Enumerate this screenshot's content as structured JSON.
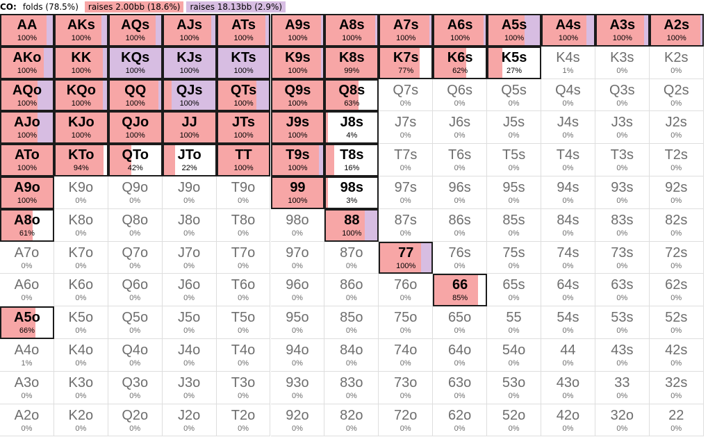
{
  "legend": {
    "position": "CO:",
    "items": [
      {
        "label": "folds (78.5%)",
        "color": "#ffffff"
      },
      {
        "label": "raises 2.00bb (18.6%)",
        "color": "#f7a6a6"
      },
      {
        "label": "raises 18.13bb (2.9%)",
        "color": "#d7bde2"
      }
    ]
  },
  "colors": {
    "raise_small": "#f7a6a6",
    "raise_large": "#d7bde2",
    "fold": "#ffffff"
  },
  "grid": [
    [
      {
        "h": "AA",
        "t": "100%",
        "r": 0.88,
        "a": 0.12
      },
      {
        "h": "AKs",
        "t": "100%",
        "r": 0.9,
        "a": 0.1
      },
      {
        "h": "AQs",
        "t": "100%",
        "r": 0.9,
        "a": 0.1
      },
      {
        "h": "AJs",
        "t": "100%",
        "r": 0.92,
        "a": 0.08
      },
      {
        "h": "ATs",
        "t": "100%",
        "r": 0.92,
        "a": 0.08
      },
      {
        "h": "A9s",
        "t": "100%",
        "r": 0.95,
        "a": 0.05
      },
      {
        "h": "A8s",
        "t": "100%",
        "r": 0.95,
        "a": 0.05
      },
      {
        "h": "A7s",
        "t": "100%",
        "r": 0.96,
        "a": 0.04
      },
      {
        "h": "A6s",
        "t": "100%",
        "r": 0.96,
        "a": 0.04
      },
      {
        "h": "A5s",
        "t": "100%",
        "r": 0.7,
        "a": 0.3
      },
      {
        "h": "A4s",
        "t": "100%",
        "r": 0.85,
        "a": 0.15
      },
      {
        "h": "A3s",
        "t": "100%",
        "r": 0.92,
        "a": 0.08
      },
      {
        "h": "A2s",
        "t": "100%",
        "r": 0.96,
        "a": 0.04
      }
    ],
    [
      {
        "h": "AKo",
        "t": "100%",
        "r": 0.83,
        "a": 0.17
      },
      {
        "h": "KK",
        "t": "100%",
        "r": 0.92,
        "a": 0.08
      },
      {
        "h": "KQs",
        "t": "100%",
        "r": 0,
        "a": 1
      },
      {
        "h": "KJs",
        "t": "100%",
        "r": 0,
        "a": 1
      },
      {
        "h": "KTs",
        "t": "100%",
        "r": 0,
        "a": 1
      },
      {
        "h": "K9s",
        "t": "100%",
        "r": 0.96,
        "a": 0.04
      },
      {
        "h": "K8s",
        "t": "99%",
        "r": 0.99,
        "a": 0
      },
      {
        "h": "K7s",
        "t": "77%",
        "r": 0.77,
        "a": 0
      },
      {
        "h": "K6s",
        "t": "62%",
        "r": 0.62,
        "a": 0
      },
      {
        "h": "K5s",
        "t": "27%",
        "r": 0.27,
        "a": 0
      },
      {
        "h": "K4s",
        "t": "1%",
        "r": 0,
        "a": 0
      },
      {
        "h": "K3s",
        "t": "0%",
        "r": 0,
        "a": 0
      },
      {
        "h": "K2s",
        "t": "0%",
        "r": 0,
        "a": 0
      }
    ],
    [
      {
        "h": "AQo",
        "t": "100%",
        "r": 0.7,
        "a": 0.3
      },
      {
        "h": "KQo",
        "t": "100%",
        "r": 0.92,
        "a": 0.08
      },
      {
        "h": "QQ",
        "t": "100%",
        "r": 0.95,
        "a": 0.05
      },
      {
        "h": "QJs",
        "t": "100%",
        "r": 0.15,
        "a": 0.85
      },
      {
        "h": "QTs",
        "t": "100%",
        "r": 0.75,
        "a": 0.25
      },
      {
        "h": "Q9s",
        "t": "100%",
        "r": 1,
        "a": 0
      },
      {
        "h": "Q8s",
        "t": "63%",
        "r": 0.63,
        "a": 0
      },
      {
        "h": "Q7s",
        "t": "0%",
        "r": 0,
        "a": 0
      },
      {
        "h": "Q6s",
        "t": "0%",
        "r": 0,
        "a": 0
      },
      {
        "h": "Q5s",
        "t": "0%",
        "r": 0,
        "a": 0
      },
      {
        "h": "Q4s",
        "t": "0%",
        "r": 0,
        "a": 0
      },
      {
        "h": "Q3s",
        "t": "0%",
        "r": 0,
        "a": 0
      },
      {
        "h": "Q2s",
        "t": "0%",
        "r": 0,
        "a": 0
      }
    ],
    [
      {
        "h": "AJo",
        "t": "100%",
        "r": 0.7,
        "a": 0.3
      },
      {
        "h": "KJo",
        "t": "100%",
        "r": 1,
        "a": 0
      },
      {
        "h": "QJo",
        "t": "100%",
        "r": 1,
        "a": 0
      },
      {
        "h": "JJ",
        "t": "100%",
        "r": 1,
        "a": 0
      },
      {
        "h": "JTs",
        "t": "100%",
        "r": 1,
        "a": 0
      },
      {
        "h": "J9s",
        "t": "100%",
        "r": 1,
        "a": 0
      },
      {
        "h": "J8s",
        "t": "4%",
        "r": 0.04,
        "a": 0
      },
      {
        "h": "J7s",
        "t": "0%",
        "r": 0,
        "a": 0
      },
      {
        "h": "J6s",
        "t": "0%",
        "r": 0,
        "a": 0
      },
      {
        "h": "J5s",
        "t": "0%",
        "r": 0,
        "a": 0
      },
      {
        "h": "J4s",
        "t": "0%",
        "r": 0,
        "a": 0
      },
      {
        "h": "J3s",
        "t": "0%",
        "r": 0,
        "a": 0
      },
      {
        "h": "J2s",
        "t": "0%",
        "r": 0,
        "a": 0
      }
    ],
    [
      {
        "h": "ATo",
        "t": "100%",
        "r": 1,
        "a": 0
      },
      {
        "h": "KTo",
        "t": "94%",
        "r": 0.94,
        "a": 0
      },
      {
        "h": "QTo",
        "t": "42%",
        "r": 0.42,
        "a": 0
      },
      {
        "h": "JTo",
        "t": "22%",
        "r": 0.22,
        "a": 0
      },
      {
        "h": "TT",
        "t": "100%",
        "r": 1,
        "a": 0
      },
      {
        "h": "T9s",
        "t": "100%",
        "r": 0.92,
        "a": 0.08
      },
      {
        "h": "T8s",
        "t": "16%",
        "r": 0.16,
        "a": 0
      },
      {
        "h": "T7s",
        "t": "0%",
        "r": 0,
        "a": 0
      },
      {
        "h": "T6s",
        "t": "0%",
        "r": 0,
        "a": 0
      },
      {
        "h": "T5s",
        "t": "0%",
        "r": 0,
        "a": 0
      },
      {
        "h": "T4s",
        "t": "0%",
        "r": 0,
        "a": 0
      },
      {
        "h": "T3s",
        "t": "0%",
        "r": 0,
        "a": 0
      },
      {
        "h": "T2s",
        "t": "0%",
        "r": 0,
        "a": 0
      }
    ],
    [
      {
        "h": "A9o",
        "t": "100%",
        "r": 1,
        "a": 0
      },
      {
        "h": "K9o",
        "t": "0%",
        "r": 0,
        "a": 0
      },
      {
        "h": "Q9o",
        "t": "0%",
        "r": 0,
        "a": 0
      },
      {
        "h": "J9o",
        "t": "0%",
        "r": 0,
        "a": 0
      },
      {
        "h": "T9o",
        "t": "0%",
        "r": 0,
        "a": 0
      },
      {
        "h": "99",
        "t": "100%",
        "r": 1,
        "a": 0
      },
      {
        "h": "98s",
        "t": "3%",
        "r": 0.03,
        "a": 0
      },
      {
        "h": "97s",
        "t": "0%",
        "r": 0,
        "a": 0
      },
      {
        "h": "96s",
        "t": "0%",
        "r": 0,
        "a": 0
      },
      {
        "h": "95s",
        "t": "0%",
        "r": 0,
        "a": 0
      },
      {
        "h": "94s",
        "t": "0%",
        "r": 0,
        "a": 0
      },
      {
        "h": "93s",
        "t": "0%",
        "r": 0,
        "a": 0
      },
      {
        "h": "92s",
        "t": "0%",
        "r": 0,
        "a": 0
      }
    ],
    [
      {
        "h": "A8o",
        "t": "61%",
        "r": 0.61,
        "a": 0
      },
      {
        "h": "K8o",
        "t": "0%",
        "r": 0,
        "a": 0
      },
      {
        "h": "Q8o",
        "t": "0%",
        "r": 0,
        "a": 0
      },
      {
        "h": "J8o",
        "t": "0%",
        "r": 0,
        "a": 0
      },
      {
        "h": "T8o",
        "t": "0%",
        "r": 0,
        "a": 0
      },
      {
        "h": "98o",
        "t": "0%",
        "r": 0,
        "a": 0
      },
      {
        "h": "88",
        "t": "100%",
        "r": 0.75,
        "a": 0.25
      },
      {
        "h": "87s",
        "t": "0%",
        "r": 0,
        "a": 0
      },
      {
        "h": "86s",
        "t": "0%",
        "r": 0,
        "a": 0
      },
      {
        "h": "85s",
        "t": "0%",
        "r": 0,
        "a": 0
      },
      {
        "h": "84s",
        "t": "0%",
        "r": 0,
        "a": 0
      },
      {
        "h": "83s",
        "t": "0%",
        "r": 0,
        "a": 0
      },
      {
        "h": "82s",
        "t": "0%",
        "r": 0,
        "a": 0
      }
    ],
    [
      {
        "h": "A7o",
        "t": "0%",
        "r": 0,
        "a": 0
      },
      {
        "h": "K7o",
        "t": "0%",
        "r": 0,
        "a": 0
      },
      {
        "h": "Q7o",
        "t": "0%",
        "r": 0,
        "a": 0
      },
      {
        "h": "J7o",
        "t": "0%",
        "r": 0,
        "a": 0
      },
      {
        "h": "T7o",
        "t": "0%",
        "r": 0,
        "a": 0
      },
      {
        "h": "97o",
        "t": "0%",
        "r": 0,
        "a": 0
      },
      {
        "h": "87o",
        "t": "0%",
        "r": 0,
        "a": 0
      },
      {
        "h": "77",
        "t": "100%",
        "r": 0.8,
        "a": 0.2
      },
      {
        "h": "76s",
        "t": "0%",
        "r": 0,
        "a": 0
      },
      {
        "h": "75s",
        "t": "0%",
        "r": 0,
        "a": 0
      },
      {
        "h": "74s",
        "t": "0%",
        "r": 0,
        "a": 0
      },
      {
        "h": "73s",
        "t": "0%",
        "r": 0,
        "a": 0
      },
      {
        "h": "72s",
        "t": "0%",
        "r": 0,
        "a": 0
      }
    ],
    [
      {
        "h": "A6o",
        "t": "0%",
        "r": 0,
        "a": 0
      },
      {
        "h": "K6o",
        "t": "0%",
        "r": 0,
        "a": 0
      },
      {
        "h": "Q6o",
        "t": "0%",
        "r": 0,
        "a": 0
      },
      {
        "h": "J6o",
        "t": "0%",
        "r": 0,
        "a": 0
      },
      {
        "h": "T6o",
        "t": "0%",
        "r": 0,
        "a": 0
      },
      {
        "h": "96o",
        "t": "0%",
        "r": 0,
        "a": 0
      },
      {
        "h": "86o",
        "t": "0%",
        "r": 0,
        "a": 0
      },
      {
        "h": "76o",
        "t": "0%",
        "r": 0,
        "a": 0
      },
      {
        "h": "66",
        "t": "85%",
        "r": 0.85,
        "a": 0
      },
      {
        "h": "65s",
        "t": "0%",
        "r": 0,
        "a": 0
      },
      {
        "h": "64s",
        "t": "0%",
        "r": 0,
        "a": 0
      },
      {
        "h": "63s",
        "t": "0%",
        "r": 0,
        "a": 0
      },
      {
        "h": "62s",
        "t": "0%",
        "r": 0,
        "a": 0
      }
    ],
    [
      {
        "h": "A5o",
        "t": "66%",
        "r": 0.66,
        "a": 0
      },
      {
        "h": "K5o",
        "t": "0%",
        "r": 0,
        "a": 0
      },
      {
        "h": "Q5o",
        "t": "0%",
        "r": 0,
        "a": 0
      },
      {
        "h": "J5o",
        "t": "0%",
        "r": 0,
        "a": 0
      },
      {
        "h": "T5o",
        "t": "0%",
        "r": 0,
        "a": 0
      },
      {
        "h": "95o",
        "t": "0%",
        "r": 0,
        "a": 0
      },
      {
        "h": "85o",
        "t": "0%",
        "r": 0,
        "a": 0
      },
      {
        "h": "75o",
        "t": "0%",
        "r": 0,
        "a": 0
      },
      {
        "h": "65o",
        "t": "0%",
        "r": 0,
        "a": 0
      },
      {
        "h": "55",
        "t": "0%",
        "r": 0,
        "a": 0
      },
      {
        "h": "54s",
        "t": "0%",
        "r": 0,
        "a": 0
      },
      {
        "h": "53s",
        "t": "0%",
        "r": 0,
        "a": 0
      },
      {
        "h": "52s",
        "t": "0%",
        "r": 0,
        "a": 0
      }
    ],
    [
      {
        "h": "A4o",
        "t": "1%",
        "r": 0,
        "a": 0
      },
      {
        "h": "K4o",
        "t": "0%",
        "r": 0,
        "a": 0
      },
      {
        "h": "Q4o",
        "t": "0%",
        "r": 0,
        "a": 0
      },
      {
        "h": "J4o",
        "t": "0%",
        "r": 0,
        "a": 0
      },
      {
        "h": "T4o",
        "t": "0%",
        "r": 0,
        "a": 0
      },
      {
        "h": "94o",
        "t": "0%",
        "r": 0,
        "a": 0
      },
      {
        "h": "84o",
        "t": "0%",
        "r": 0,
        "a": 0
      },
      {
        "h": "74o",
        "t": "0%",
        "r": 0,
        "a": 0
      },
      {
        "h": "64o",
        "t": "0%",
        "r": 0,
        "a": 0
      },
      {
        "h": "54o",
        "t": "0%",
        "r": 0,
        "a": 0
      },
      {
        "h": "44",
        "t": "0%",
        "r": 0,
        "a": 0
      },
      {
        "h": "43s",
        "t": "0%",
        "r": 0,
        "a": 0
      },
      {
        "h": "42s",
        "t": "0%",
        "r": 0,
        "a": 0
      }
    ],
    [
      {
        "h": "A3o",
        "t": "0%",
        "r": 0,
        "a": 0
      },
      {
        "h": "K3o",
        "t": "0%",
        "r": 0,
        "a": 0
      },
      {
        "h": "Q3o",
        "t": "0%",
        "r": 0,
        "a": 0
      },
      {
        "h": "J3o",
        "t": "0%",
        "r": 0,
        "a": 0
      },
      {
        "h": "T3o",
        "t": "0%",
        "r": 0,
        "a": 0
      },
      {
        "h": "93o",
        "t": "0%",
        "r": 0,
        "a": 0
      },
      {
        "h": "83o",
        "t": "0%",
        "r": 0,
        "a": 0
      },
      {
        "h": "73o",
        "t": "0%",
        "r": 0,
        "a": 0
      },
      {
        "h": "63o",
        "t": "0%",
        "r": 0,
        "a": 0
      },
      {
        "h": "53o",
        "t": "0%",
        "r": 0,
        "a": 0
      },
      {
        "h": "43o",
        "t": "0%",
        "r": 0,
        "a": 0
      },
      {
        "h": "33",
        "t": "0%",
        "r": 0,
        "a": 0
      },
      {
        "h": "32s",
        "t": "0%",
        "r": 0,
        "a": 0
      }
    ],
    [
      {
        "h": "A2o",
        "t": "0%",
        "r": 0,
        "a": 0
      },
      {
        "h": "K2o",
        "t": "0%",
        "r": 0,
        "a": 0
      },
      {
        "h": "Q2o",
        "t": "0%",
        "r": 0,
        "a": 0
      },
      {
        "h": "J2o",
        "t": "0%",
        "r": 0,
        "a": 0
      },
      {
        "h": "T2o",
        "t": "0%",
        "r": 0,
        "a": 0
      },
      {
        "h": "92o",
        "t": "0%",
        "r": 0,
        "a": 0
      },
      {
        "h": "82o",
        "t": "0%",
        "r": 0,
        "a": 0
      },
      {
        "h": "72o",
        "t": "0%",
        "r": 0,
        "a": 0
      },
      {
        "h": "62o",
        "t": "0%",
        "r": 0,
        "a": 0
      },
      {
        "h": "52o",
        "t": "0%",
        "r": 0,
        "a": 0
      },
      {
        "h": "42o",
        "t": "0%",
        "r": 0,
        "a": 0
      },
      {
        "h": "32o",
        "t": "0%",
        "r": 0,
        "a": 0
      },
      {
        "h": "22",
        "t": "0%",
        "r": 0,
        "a": 0
      }
    ]
  ]
}
